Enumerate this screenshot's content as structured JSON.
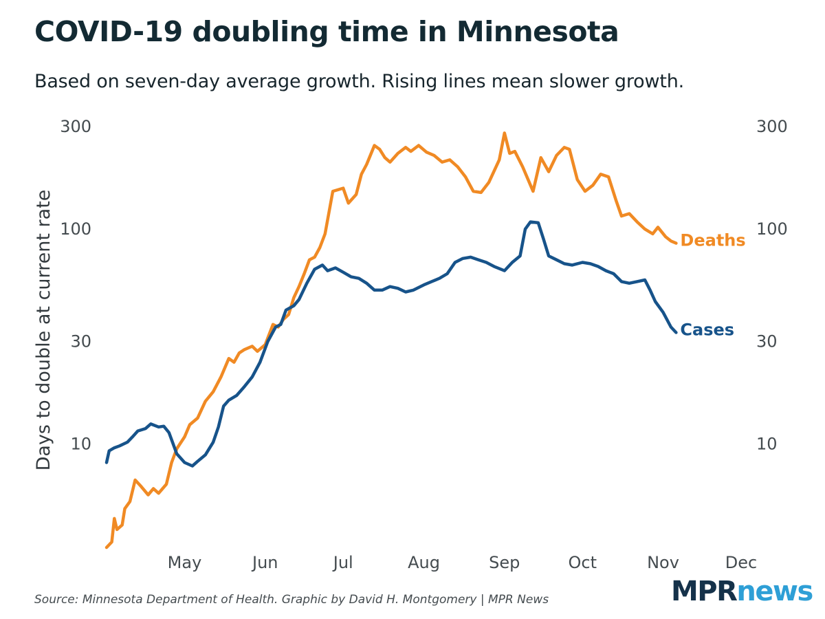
{
  "title": "COVID-19 doubling time in Minnesota",
  "subtitle": "Based on seven-day average growth. Rising lines mean slower growth.",
  "source": "Source: Minnesota Department of Health. Graphic by David H. Montgomery | MPR News",
  "logo": {
    "part1": "MPR",
    "part2": "news"
  },
  "colors": {
    "cases": "#17538a",
    "deaths": "#f08a24",
    "text": "#132a33",
    "axis": "#444b4f"
  },
  "chart_data": {
    "type": "line",
    "title": "COVID-19 doubling time in Minnesota",
    "ylabel": "Days to double at current rate",
    "xlabel": "",
    "yscale": "log",
    "ylim": [
      3.3,
      300
    ],
    "yticks": [
      {
        "value": 10,
        "label": "10"
      },
      {
        "value": 30,
        "label": "30"
      },
      {
        "value": 100,
        "label": "100"
      },
      {
        "value": 300,
        "label": "300"
      }
    ],
    "xlim": [
      "2020-04-01",
      "2020-12-01"
    ],
    "xticks": [
      {
        "date": "2020-05-01",
        "label": "May"
      },
      {
        "date": "2020-06-01",
        "label": "Jun"
      },
      {
        "date": "2020-07-01",
        "label": "Jul"
      },
      {
        "date": "2020-08-01",
        "label": "Aug"
      },
      {
        "date": "2020-09-01",
        "label": "Sep"
      },
      {
        "date": "2020-10-01",
        "label": "Oct"
      },
      {
        "date": "2020-11-01",
        "label": "Nov"
      },
      {
        "date": "2020-12-01",
        "label": "Dec"
      }
    ],
    "grid": false,
    "series": [
      {
        "name": "Deaths",
        "label": "Deaths",
        "color": "#f08a24",
        "points": [
          [
            "2020-04-01",
            3.3
          ],
          [
            "2020-04-03",
            3.5
          ],
          [
            "2020-04-04",
            4.5
          ],
          [
            "2020-04-05",
            4.0
          ],
          [
            "2020-04-07",
            4.2
          ],
          [
            "2020-04-08",
            5.0
          ],
          [
            "2020-04-10",
            5.4
          ],
          [
            "2020-04-12",
            6.8
          ],
          [
            "2020-04-14",
            6.4
          ],
          [
            "2020-04-17",
            5.8
          ],
          [
            "2020-04-19",
            6.2
          ],
          [
            "2020-04-21",
            5.9
          ],
          [
            "2020-04-24",
            6.5
          ],
          [
            "2020-04-26",
            8.2
          ],
          [
            "2020-04-28",
            9.5
          ],
          [
            "2020-05-01",
            10.8
          ],
          [
            "2020-05-03",
            12.3
          ],
          [
            "2020-05-06",
            13.2
          ],
          [
            "2020-05-09",
            15.8
          ],
          [
            "2020-05-12",
            17.5
          ],
          [
            "2020-05-15",
            20.5
          ],
          [
            "2020-05-18",
            25.0
          ],
          [
            "2020-05-20",
            24.0
          ],
          [
            "2020-05-22",
            26.5
          ],
          [
            "2020-05-24",
            27.5
          ],
          [
            "2020-05-27",
            28.5
          ],
          [
            "2020-05-29",
            27.0
          ],
          [
            "2020-06-01",
            29.0
          ],
          [
            "2020-06-04",
            36.0
          ],
          [
            "2020-06-06",
            35.0
          ],
          [
            "2020-06-08",
            38.0
          ],
          [
            "2020-06-10",
            40.0
          ],
          [
            "2020-06-12",
            48.0
          ],
          [
            "2020-06-14",
            54.0
          ],
          [
            "2020-06-16",
            62.0
          ],
          [
            "2020-06-18",
            72.0
          ],
          [
            "2020-06-20",
            74.0
          ],
          [
            "2020-06-22",
            82.0
          ],
          [
            "2020-06-24",
            95.0
          ],
          [
            "2020-06-27",
            150.0
          ],
          [
            "2020-07-01",
            155.0
          ],
          [
            "2020-07-03",
            132.0
          ],
          [
            "2020-07-06",
            145.0
          ],
          [
            "2020-07-08",
            180.0
          ],
          [
            "2020-07-10",
            200.0
          ],
          [
            "2020-07-13",
            245.0
          ],
          [
            "2020-07-15",
            235.0
          ],
          [
            "2020-07-17",
            215.0
          ],
          [
            "2020-07-19",
            205.0
          ],
          [
            "2020-07-22",
            225.0
          ],
          [
            "2020-07-25",
            240.0
          ],
          [
            "2020-07-27",
            230.0
          ],
          [
            "2020-07-30",
            245.0
          ],
          [
            "2020-08-02",
            228.0
          ],
          [
            "2020-08-05",
            220.0
          ],
          [
            "2020-08-08",
            205.0
          ],
          [
            "2020-08-11",
            210.0
          ],
          [
            "2020-08-14",
            195.0
          ],
          [
            "2020-08-17",
            175.0
          ],
          [
            "2020-08-20",
            150.0
          ],
          [
            "2020-08-23",
            148.0
          ],
          [
            "2020-08-26",
            165.0
          ],
          [
            "2020-08-30",
            210.0
          ],
          [
            "2020-09-01",
            280.0
          ],
          [
            "2020-09-03",
            225.0
          ],
          [
            "2020-09-05",
            230.0
          ],
          [
            "2020-09-08",
            195.0
          ],
          [
            "2020-09-12",
            150.0
          ],
          [
            "2020-09-15",
            215.0
          ],
          [
            "2020-09-18",
            185.0
          ],
          [
            "2020-09-21",
            220.0
          ],
          [
            "2020-09-24",
            240.0
          ],
          [
            "2020-09-26",
            235.0
          ],
          [
            "2020-09-29",
            170.0
          ],
          [
            "2020-10-02",
            150.0
          ],
          [
            "2020-10-05",
            160.0
          ],
          [
            "2020-10-08",
            180.0
          ],
          [
            "2020-10-11",
            175.0
          ],
          [
            "2020-10-14",
            135.0
          ],
          [
            "2020-10-16",
            115.0
          ],
          [
            "2020-10-19",
            118.0
          ],
          [
            "2020-10-22",
            108.0
          ],
          [
            "2020-10-25",
            100.0
          ],
          [
            "2020-10-28",
            95.0
          ],
          [
            "2020-10-30",
            102.0
          ],
          [
            "2020-11-02",
            92.0
          ],
          [
            "2020-11-04",
            88.0
          ],
          [
            "2020-11-06",
            86.0
          ]
        ]
      },
      {
        "name": "Cases",
        "label": "Cases",
        "color": "#17538a",
        "points": [
          [
            "2020-04-01",
            8.2
          ],
          [
            "2020-04-02",
            9.3
          ],
          [
            "2020-04-04",
            9.6
          ],
          [
            "2020-04-06",
            9.8
          ],
          [
            "2020-04-09",
            10.2
          ],
          [
            "2020-04-11",
            10.8
          ],
          [
            "2020-04-13",
            11.5
          ],
          [
            "2020-04-16",
            11.8
          ],
          [
            "2020-04-18",
            12.4
          ],
          [
            "2020-04-21",
            12.0
          ],
          [
            "2020-04-23",
            12.1
          ],
          [
            "2020-04-25",
            11.3
          ],
          [
            "2020-04-28",
            9.0
          ],
          [
            "2020-05-01",
            8.2
          ],
          [
            "2020-05-04",
            7.9
          ],
          [
            "2020-05-06",
            8.3
          ],
          [
            "2020-05-09",
            8.9
          ],
          [
            "2020-05-12",
            10.2
          ],
          [
            "2020-05-14",
            12.0
          ],
          [
            "2020-05-16",
            15.0
          ],
          [
            "2020-05-18",
            16.0
          ],
          [
            "2020-05-21",
            16.8
          ],
          [
            "2020-05-24",
            18.5
          ],
          [
            "2020-05-27",
            20.5
          ],
          [
            "2020-05-30",
            24.0
          ],
          [
            "2020-06-02",
            30.0
          ],
          [
            "2020-06-05",
            35.0
          ],
          [
            "2020-06-07",
            36.0
          ],
          [
            "2020-06-09",
            42.0
          ],
          [
            "2020-06-12",
            44.0
          ],
          [
            "2020-06-14",
            47.0
          ],
          [
            "2020-06-17",
            56.0
          ],
          [
            "2020-06-20",
            65.0
          ],
          [
            "2020-06-23",
            68.0
          ],
          [
            "2020-06-25",
            64.0
          ],
          [
            "2020-06-28",
            66.0
          ],
          [
            "2020-07-01",
            63.0
          ],
          [
            "2020-07-04",
            60.0
          ],
          [
            "2020-07-07",
            59.0
          ],
          [
            "2020-07-10",
            56.0
          ],
          [
            "2020-07-13",
            52.0
          ],
          [
            "2020-07-16",
            52.0
          ],
          [
            "2020-07-19",
            54.0
          ],
          [
            "2020-07-22",
            53.0
          ],
          [
            "2020-07-25",
            51.0
          ],
          [
            "2020-07-28",
            52.0
          ],
          [
            "2020-08-01",
            55.0
          ],
          [
            "2020-08-04",
            57.0
          ],
          [
            "2020-08-07",
            59.0
          ],
          [
            "2020-08-10",
            62.0
          ],
          [
            "2020-08-13",
            70.0
          ],
          [
            "2020-08-16",
            73.0
          ],
          [
            "2020-08-19",
            74.0
          ],
          [
            "2020-08-22",
            72.0
          ],
          [
            "2020-08-25",
            70.0
          ],
          [
            "2020-08-28",
            67.0
          ],
          [
            "2020-09-01",
            64.0
          ],
          [
            "2020-09-04",
            70.0
          ],
          [
            "2020-09-07",
            75.0
          ],
          [
            "2020-09-09",
            100.0
          ],
          [
            "2020-09-11",
            108.0
          ],
          [
            "2020-09-14",
            107.0
          ],
          [
            "2020-09-16",
            90.0
          ],
          [
            "2020-09-18",
            75.0
          ],
          [
            "2020-09-21",
            72.0
          ],
          [
            "2020-09-24",
            69.0
          ],
          [
            "2020-09-27",
            68.0
          ],
          [
            "2020-10-01",
            70.0
          ],
          [
            "2020-10-04",
            69.0
          ],
          [
            "2020-10-07",
            67.0
          ],
          [
            "2020-10-10",
            64.0
          ],
          [
            "2020-10-13",
            62.0
          ],
          [
            "2020-10-16",
            57.0
          ],
          [
            "2020-10-19",
            56.0
          ],
          [
            "2020-10-22",
            57.0
          ],
          [
            "2020-10-25",
            58.0
          ],
          [
            "2020-10-27",
            52.0
          ],
          [
            "2020-10-29",
            46.0
          ],
          [
            "2020-11-01",
            41.0
          ],
          [
            "2020-11-04",
            35.0
          ],
          [
            "2020-11-06",
            33.0
          ]
        ]
      }
    ]
  }
}
